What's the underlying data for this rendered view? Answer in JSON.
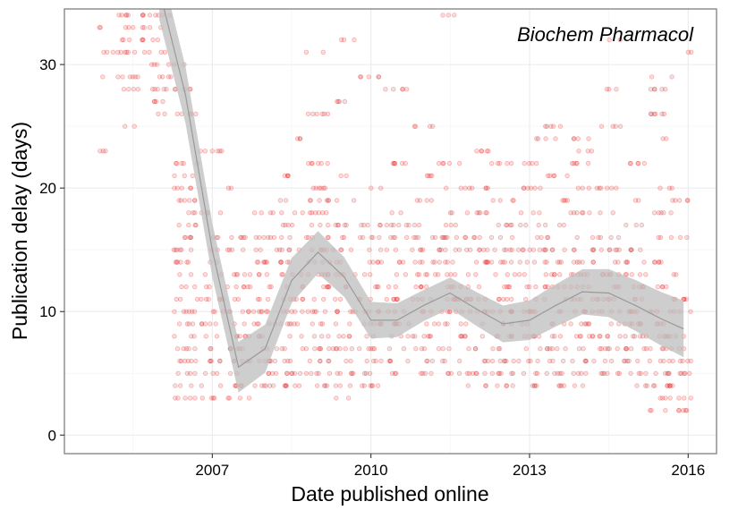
{
  "chart_data": {
    "type": "scatter",
    "title": "",
    "annotation": "Biochem Pharmacol",
    "xlabel": "Date published online",
    "ylabel": "Publication delay (days)",
    "x_axis": {
      "kind": "date",
      "range": [
        "2004-03-15",
        "2016-07-15"
      ],
      "ticks": [
        "2007",
        "2010",
        "2013",
        "2016"
      ]
    },
    "y_axis": {
      "range": [
        -1.5,
        34.5
      ],
      "ticks": [
        0,
        10,
        20,
        30
      ]
    },
    "grid": true,
    "legend": "none",
    "colors": {
      "points": "#e41a1c",
      "smooth_band": "#bdbdbd",
      "smooth_line": "#999999"
    },
    "smooth_curve": [
      {
        "x": "2006-01-01",
        "y": 36.0
      },
      {
        "x": "2006-07-01",
        "y": 27.5
      },
      {
        "x": "2007-01-01",
        "y": 15.0
      },
      {
        "x": "2007-07-01",
        "y": 5.5
      },
      {
        "x": "2008-01-01",
        "y": 7.0
      },
      {
        "x": "2008-07-01",
        "y": 12.5
      },
      {
        "x": "2009-01-01",
        "y": 14.8
      },
      {
        "x": "2009-07-01",
        "y": 12.8
      },
      {
        "x": "2010-01-01",
        "y": 9.3
      },
      {
        "x": "2010-07-01",
        "y": 9.3
      },
      {
        "x": "2011-01-01",
        "y": 10.5
      },
      {
        "x": "2011-07-01",
        "y": 11.5
      },
      {
        "x": "2012-01-01",
        "y": 10.2
      },
      {
        "x": "2012-07-01",
        "y": 9.0
      },
      {
        "x": "2013-01-01",
        "y": 9.3
      },
      {
        "x": "2013-07-01",
        "y": 10.5
      },
      {
        "x": "2014-01-01",
        "y": 11.6
      },
      {
        "x": "2014-07-01",
        "y": 11.5
      },
      {
        "x": "2015-01-01",
        "y": 10.5
      },
      {
        "x": "2015-07-01",
        "y": 9.4
      },
      {
        "x": "2015-12-01",
        "y": 8.6
      }
    ],
    "point_density": [
      {
        "x": "2005-02-01",
        "y": [
          34,
          33,
          31,
          29,
          23
        ]
      },
      {
        "x": "2005-07-01",
        "y": [
          34,
          33,
          32,
          31,
          29,
          28,
          25
        ]
      },
      {
        "x": "2006-01-01",
        "y": [
          34,
          33,
          32,
          31,
          30,
          29,
          28,
          27,
          26
        ]
      },
      {
        "x": "2006-07-01",
        "y": [
          30,
          28,
          26,
          22,
          21,
          20,
          19,
          18,
          17,
          16,
          15,
          14,
          13,
          12,
          11,
          10,
          9,
          8,
          7,
          6,
          5,
          4,
          3
        ]
      },
      {
        "x": "2007-01-01",
        "y": [
          23,
          18,
          16,
          15,
          14,
          13,
          12,
          11,
          10,
          9,
          8,
          7,
          6,
          5,
          4,
          3
        ]
      },
      {
        "x": "2007-07-01",
        "y": [
          20,
          16,
          15,
          13,
          12,
          11,
          10,
          9,
          8,
          7,
          6,
          5,
          4,
          3
        ]
      },
      {
        "x": "2008-01-01",
        "y": [
          18,
          16,
          15,
          14,
          13,
          12,
          11,
          10,
          9,
          8,
          7,
          6,
          5,
          4
        ]
      },
      {
        "x": "2008-07-01",
        "y": [
          24,
          21,
          19,
          18,
          17,
          16,
          15,
          14,
          13,
          12,
          11,
          10,
          9,
          8,
          7,
          6,
          5,
          4
        ]
      },
      {
        "x": "2009-01-01",
        "y": [
          31,
          26,
          22,
          20,
          19,
          18,
          17,
          16,
          15,
          14,
          13,
          12,
          11,
          10,
          9,
          8,
          7,
          6,
          5,
          4
        ]
      },
      {
        "x": "2009-07-01",
        "y": [
          32,
          27,
          21,
          19,
          17,
          16,
          15,
          14,
          13,
          12,
          11,
          10,
          9,
          8,
          7,
          6,
          5,
          4,
          3
        ]
      },
      {
        "x": "2010-01-01",
        "y": [
          29,
          20,
          17,
          16,
          15,
          14,
          13,
          12,
          11,
          10,
          9,
          8,
          7,
          6,
          5,
          4
        ]
      },
      {
        "x": "2010-07-01",
        "y": [
          28,
          22,
          18,
          17,
          16,
          15,
          14,
          13,
          12,
          11,
          10,
          9,
          8,
          7,
          6,
          5
        ]
      },
      {
        "x": "2011-01-01",
        "y": [
          25,
          21,
          19,
          17,
          16,
          15,
          14,
          13,
          12,
          11,
          10,
          9,
          8,
          7,
          6,
          5
        ]
      },
      {
        "x": "2011-07-01",
        "y": [
          34,
          22,
          20,
          18,
          17,
          16,
          15,
          14,
          13,
          12,
          11,
          10,
          9,
          8,
          7,
          6,
          5
        ]
      },
      {
        "x": "2012-01-01",
        "y": [
          23,
          20,
          18,
          16,
          15,
          14,
          13,
          12,
          11,
          10,
          9,
          8,
          7,
          6,
          5,
          4
        ]
      },
      {
        "x": "2012-07-01",
        "y": [
          22,
          19,
          17,
          16,
          15,
          14,
          13,
          12,
          11,
          10,
          9,
          8,
          7,
          6,
          5,
          4
        ]
      },
      {
        "x": "2013-01-01",
        "y": [
          24,
          22,
          20,
          18,
          17,
          16,
          15,
          14,
          13,
          12,
          11,
          10,
          9,
          8,
          7,
          6,
          5,
          4
        ]
      },
      {
        "x": "2013-07-01",
        "y": [
          25,
          24,
          21,
          19,
          17,
          16,
          15,
          14,
          13,
          12,
          11,
          10,
          9,
          8,
          7,
          6,
          5,
          4
        ]
      },
      {
        "x": "2014-01-01",
        "y": [
          24,
          23,
          22,
          20,
          18,
          16,
          15,
          14,
          13,
          12,
          11,
          10,
          9,
          8,
          7,
          6,
          5,
          4
        ]
      },
      {
        "x": "2014-07-01",
        "y": [
          32,
          28,
          25,
          20,
          18,
          16,
          15,
          14,
          13,
          12,
          11,
          10,
          9,
          8,
          7,
          6,
          5
        ]
      },
      {
        "x": "2015-01-01",
        "y": [
          22,
          19,
          17,
          15,
          14,
          13,
          12,
          11,
          10,
          9,
          8,
          7,
          6,
          5,
          4
        ]
      },
      {
        "x": "2015-07-01",
        "y": [
          29,
          28,
          26,
          24,
          20,
          18,
          16,
          14,
          12,
          10,
          9,
          8,
          7,
          6,
          5,
          4,
          3,
          2
        ]
      },
      {
        "x": "2015-11-01",
        "y": [
          31,
          19,
          16,
          13,
          11,
          10,
          8,
          7,
          6,
          5,
          4,
          3,
          2
        ]
      }
    ]
  }
}
